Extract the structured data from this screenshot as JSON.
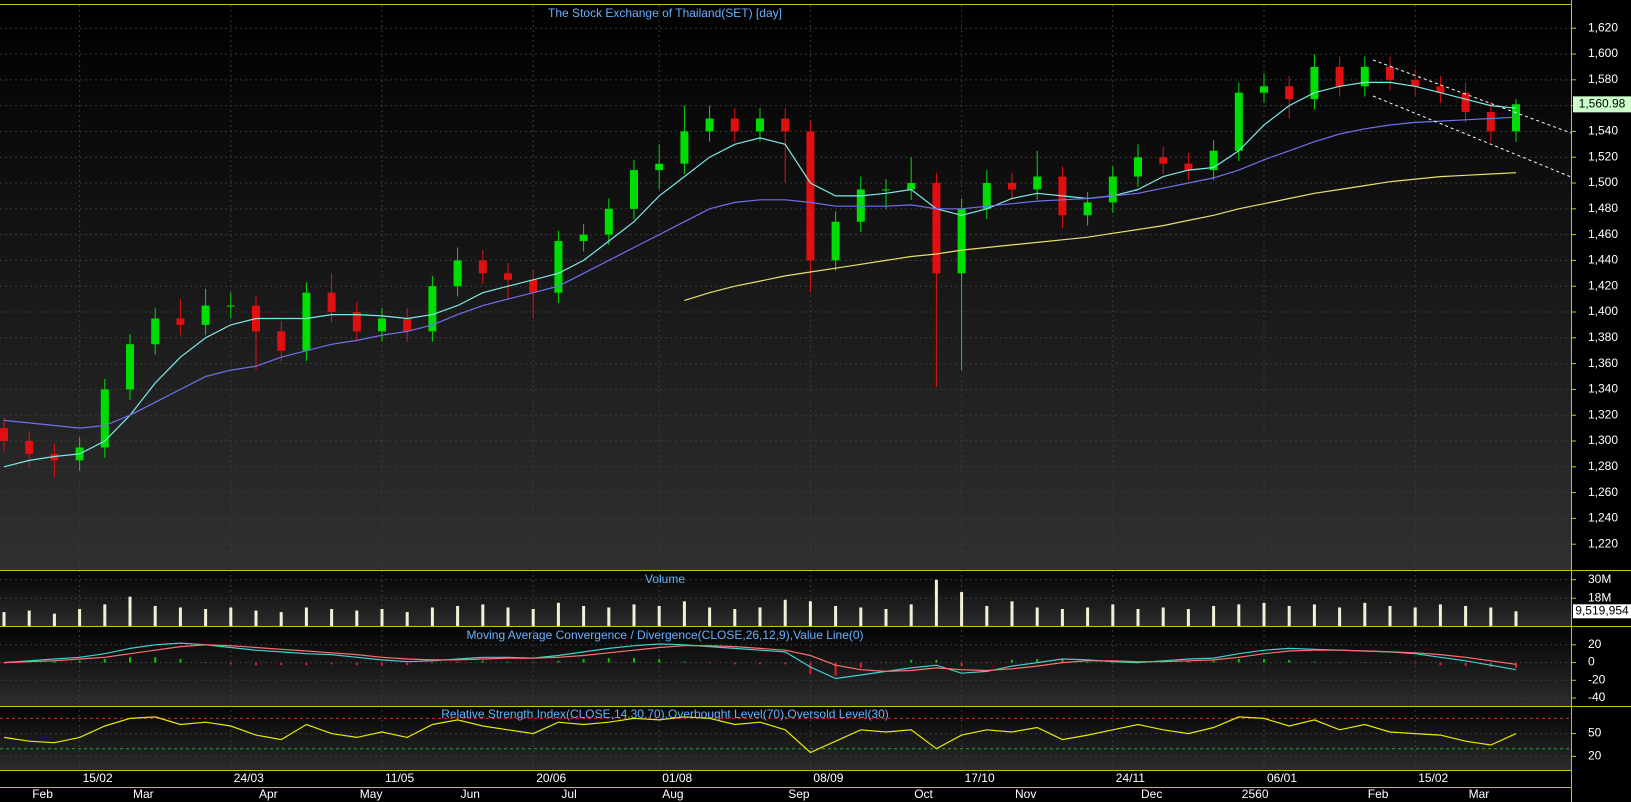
{
  "chart_data": [
    {
      "type": "candlestick",
      "title": "The Stock Exchange of Thailand(SET) [day]",
      "up_color": "#00dd00",
      "down_color": "#e01010",
      "open": [
        1310,
        1300,
        1290,
        1285,
        1295,
        1340,
        1375,
        1395,
        1390,
        1405,
        1405,
        1385,
        1370,
        1415,
        1400,
        1385,
        1395,
        1385,
        1420,
        1440,
        1430,
        1425,
        1415,
        1455,
        1460,
        1480,
        1510,
        1515,
        1540,
        1550,
        1540,
        1550,
        1540,
        1440,
        1470,
        1495,
        1495,
        1500,
        1430,
        1480,
        1500,
        1495,
        1505,
        1475,
        1485,
        1505,
        1520,
        1515,
        1510,
        1525,
        1570,
        1575,
        1565,
        1590,
        1575,
        1590,
        1580,
        1575,
        1570,
        1555,
        1540
      ],
      "high": [
        1318,
        1308,
        1298,
        1303,
        1348,
        1383,
        1403,
        1410,
        1418,
        1415,
        1413,
        1393,
        1423,
        1430,
        1408,
        1403,
        1403,
        1428,
        1450,
        1448,
        1438,
        1433,
        1463,
        1468,
        1488,
        1518,
        1530,
        1560,
        1560,
        1558,
        1558,
        1558,
        1548,
        1478,
        1505,
        1503,
        1520,
        1508,
        1488,
        1510,
        1508,
        1525,
        1513,
        1493,
        1513,
        1530,
        1528,
        1523,
        1533,
        1578,
        1585,
        1583,
        1600,
        1598,
        1598,
        1598,
        1588,
        1583,
        1578,
        1563,
        1565
      ],
      "low": [
        1292,
        1280,
        1272,
        1277,
        1287,
        1332,
        1367,
        1382,
        1382,
        1395,
        1355,
        1362,
        1362,
        1392,
        1377,
        1377,
        1377,
        1377,
        1412,
        1422,
        1410,
        1395,
        1407,
        1447,
        1452,
        1472,
        1495,
        1507,
        1532,
        1532,
        1532,
        1500,
        1415,
        1432,
        1462,
        1480,
        1487,
        1342,
        1355,
        1472,
        1487,
        1487,
        1465,
        1467,
        1477,
        1497,
        1507,
        1502,
        1502,
        1517,
        1562,
        1550,
        1557,
        1567,
        1567,
        1572,
        1567,
        1562,
        1547,
        1532,
        1532
      ],
      "close": [
        1300,
        1290,
        1285,
        1295,
        1340,
        1375,
        1395,
        1390,
        1405,
        1405,
        1385,
        1370,
        1415,
        1400,
        1385,
        1395,
        1385,
        1420,
        1440,
        1430,
        1425,
        1415,
        1455,
        1460,
        1480,
        1510,
        1515,
        1540,
        1550,
        1540,
        1550,
        1540,
        1440,
        1470,
        1495,
        1495,
        1500,
        1430,
        1480,
        1500,
        1495,
        1505,
        1475,
        1485,
        1505,
        1520,
        1515,
        1510,
        1525,
        1570,
        1575,
        1565,
        1590,
        1575,
        1590,
        1580,
        1575,
        1570,
        1555,
        1540,
        1561
      ],
      "overlays": [
        {
          "color": "#7fe8e8",
          "values": [
            1280,
            1285,
            1288,
            1290,
            1300,
            1320,
            1345,
            1365,
            1380,
            1390,
            1395,
            1395,
            1395,
            1398,
            1398,
            1397,
            1395,
            1398,
            1405,
            1415,
            1420,
            1425,
            1430,
            1440,
            1455,
            1470,
            1490,
            1505,
            1520,
            1530,
            1535,
            1530,
            1500,
            1490,
            1490,
            1492,
            1495,
            1480,
            1475,
            1480,
            1488,
            1492,
            1490,
            1488,
            1490,
            1495,
            1505,
            1510,
            1512,
            1525,
            1545,
            1560,
            1570,
            1575,
            1578,
            1578,
            1575,
            1570,
            1565,
            1560,
            1558
          ]
        },
        {
          "color": "#7070ee",
          "values": [
            1316,
            1314,
            1312,
            1310,
            1312,
            1320,
            1330,
            1340,
            1350,
            1355,
            1358,
            1365,
            1370,
            1375,
            1378,
            1382,
            1385,
            1390,
            1398,
            1405,
            1410,
            1415,
            1420,
            1430,
            1440,
            1450,
            1460,
            1470,
            1480,
            1485,
            1487,
            1487,
            1485,
            1482,
            1482,
            1482,
            1483,
            1480,
            1480,
            1482,
            1484,
            1486,
            1487,
            1488,
            1490,
            1492,
            1496,
            1500,
            1504,
            1510,
            1518,
            1525,
            1532,
            1538,
            1542,
            1545,
            1547,
            1548,
            1549,
            1550,
            1551
          ]
        },
        {
          "color": "#e8e070",
          "values": [
            null,
            null,
            null,
            null,
            null,
            null,
            null,
            null,
            null,
            null,
            null,
            null,
            null,
            null,
            null,
            null,
            null,
            null,
            null,
            null,
            null,
            null,
            null,
            null,
            null,
            null,
            null,
            1409,
            1415,
            1420,
            1424,
            1428,
            1431,
            1434,
            1437,
            1440,
            1443,
            1445,
            1448,
            1450,
            1452,
            1454,
            1456,
            1458,
            1461,
            1464,
            1467,
            1471,
            1475,
            1480,
            1484,
            1488,
            1492,
            1495,
            1498,
            1501,
            1503,
            1505,
            1506,
            1507,
            1508
          ]
        }
      ],
      "last_price": {
        "value": 1560.98,
        "label": "1,560.98"
      },
      "ylim": [
        1200,
        1638
      ],
      "yticks": [
        {
          "value": 1220,
          "label": "1,220"
        },
        {
          "value": 1240,
          "label": "1,240"
        },
        {
          "value": 1260,
          "label": "1,260"
        },
        {
          "value": 1280,
          "label": "1,280"
        },
        {
          "value": 1300,
          "label": "1,300"
        },
        {
          "value": 1320,
          "label": "1,320"
        },
        {
          "value": 1340,
          "label": "1,340"
        },
        {
          "value": 1360,
          "label": "1,360"
        },
        {
          "value": 1380,
          "label": "1,380"
        },
        {
          "value": 1400,
          "label": "1,400"
        },
        {
          "value": 1420,
          "label": "1,420"
        },
        {
          "value": 1440,
          "label": "1,440"
        },
        {
          "value": 1460,
          "label": "1,460"
        },
        {
          "value": 1480,
          "label": "1,480"
        },
        {
          "value": 1500,
          "label": "1,500"
        },
        {
          "value": 1520,
          "label": "1,520"
        },
        {
          "value": 1540,
          "label": "1,540"
        },
        {
          "value": 1560,
          "label": "1,560"
        },
        {
          "value": 1580,
          "label": "1,580"
        },
        {
          "value": 1600,
          "label": "1,600"
        },
        {
          "value": 1620,
          "label": "1,620"
        }
      ],
      "grid": true
    },
    {
      "type": "bar",
      "title": "Volume",
      "color": "#f4f0d8",
      "values": [
        9000000,
        10000000,
        8000000,
        11000000,
        14000000,
        19000000,
        13000000,
        12000000,
        11000000,
        12000000,
        10000000,
        9000000,
        12000000,
        11000000,
        10000000,
        11000000,
        9000000,
        12000000,
        13000000,
        14000000,
        12000000,
        11000000,
        15000000,
        13000000,
        12000000,
        14000000,
        13000000,
        16000000,
        12000000,
        11000000,
        12000000,
        17000000,
        16000000,
        13000000,
        12000000,
        11000000,
        14000000,
        30000000,
        22000000,
        13000000,
        16000000,
        12000000,
        11000000,
        12000000,
        14000000,
        11000000,
        12000000,
        11000000,
        13000000,
        14000000,
        15000000,
        13000000,
        14000000,
        12000000,
        15000000,
        13000000,
        12000000,
        14000000,
        13000000,
        12000000,
        9519954
      ],
      "last_value": {
        "value": 9519954,
        "label": "9,519,954"
      },
      "ylim": [
        0,
        35000000
      ],
      "yticks": [
        {
          "value": 30000000,
          "label": "30M"
        },
        {
          "value": 18000000,
          "label": "18M"
        }
      ],
      "grid": true
    },
    {
      "type": "line",
      "title": "Moving Average Convergence / Divergence(CLOSE,26,12,9),Value Line(0)",
      "series": [
        {
          "color": "#40d0d0",
          "values": [
            0,
            2,
            4,
            6,
            10,
            16,
            20,
            22,
            20,
            17,
            14,
            12,
            10,
            9,
            6,
            3,
            1,
            2,
            4,
            6,
            6,
            5,
            8,
            12,
            16,
            19,
            21,
            20,
            18,
            16,
            14,
            12,
            -5,
            -18,
            -14,
            -10,
            -6,
            -3,
            -12,
            -10,
            -4,
            0,
            4,
            3,
            1,
            0,
            2,
            4,
            5,
            10,
            14,
            16,
            15,
            14,
            13,
            12,
            10,
            6,
            2,
            -3,
            -8
          ]
        },
        {
          "color": "#ff7070",
          "values": [
            0,
            1,
            2,
            4,
            6,
            10,
            14,
            18,
            20,
            19,
            17,
            15,
            13,
            11,
            9,
            6,
            4,
            3,
            3,
            4,
            5,
            5,
            6,
            8,
            11,
            14,
            17,
            19,
            19,
            18,
            16,
            14,
            8,
            -3,
            -8,
            -10,
            -9,
            -6,
            -8,
            -9,
            -7,
            -4,
            0,
            2,
            2,
            1,
            1,
            2,
            3,
            6,
            10,
            13,
            14,
            14,
            13,
            12,
            11,
            9,
            6,
            2,
            -2
          ]
        }
      ],
      "histogram": {
        "up_color": "#00cc00",
        "down_color": "#dd2020",
        "values": [
          0,
          1,
          2,
          2,
          4,
          6,
          6,
          4,
          0,
          -2,
          -3,
          -3,
          -3,
          -2,
          -3,
          -3,
          -3,
          -1,
          1,
          2,
          1,
          0,
          2,
          4,
          5,
          5,
          4,
          1,
          -1,
          -2,
          -2,
          -2,
          -13,
          -15,
          -6,
          0,
          3,
          3,
          -4,
          -1,
          3,
          4,
          4,
          1,
          -1,
          -1,
          1,
          2,
          2,
          4,
          4,
          3,
          1,
          0,
          0,
          0,
          -1,
          -3,
          -4,
          -5,
          -6
        ]
      },
      "ylim": [
        -49,
        39
      ],
      "yticks": [
        20,
        0,
        -20,
        -40
      ],
      "grid": true
    },
    {
      "type": "line",
      "title": "Relative Strength Index(CLOSE,14,30,70),Overbought Level(70),Oversold Level(30)",
      "series": [
        {
          "color": "#e8e800",
          "values": [
            45,
            40,
            38,
            45,
            60,
            70,
            72,
            62,
            65,
            60,
            48,
            42,
            62,
            50,
            45,
            52,
            45,
            62,
            68,
            60,
            55,
            50,
            65,
            62,
            65,
            70,
            68,
            72,
            70,
            62,
            65,
            55,
            25,
            40,
            55,
            52,
            55,
            30,
            48,
            55,
            52,
            58,
            42,
            48,
            55,
            62,
            55,
            50,
            58,
            72,
            70,
            60,
            68,
            55,
            62,
            52,
            50,
            48,
            40,
            35,
            50
          ]
        }
      ],
      "levels": [
        {
          "value": 70,
          "color": "#c03030"
        },
        {
          "value": 30,
          "color": "#30a030"
        }
      ],
      "ylim": [
        2,
        85
      ],
      "yticks": [
        50,
        20
      ],
      "grid": true,
      "categories": [
        null,
        null,
        null,
        "15/02",
        null,
        null,
        null,
        null,
        null,
        "24/03",
        null,
        null,
        null,
        null,
        null,
        "11/05",
        null,
        null,
        null,
        null,
        null,
        "20/06",
        null,
        null,
        null,
        null,
        "01/08",
        null,
        null,
        null,
        null,
        null,
        "08/09",
        null,
        null,
        null,
        null,
        null,
        "17/10",
        null,
        null,
        null,
        null,
        null,
        "24/11",
        null,
        null,
        null,
        null,
        null,
        "06/01",
        null,
        null,
        null,
        null,
        null,
        "15/02",
        null,
        null,
        null,
        null
      ],
      "months": [
        null,
        "Feb",
        null,
        null,
        null,
        "Mar",
        null,
        null,
        null,
        null,
        "Apr",
        null,
        null,
        null,
        "May",
        null,
        null,
        null,
        "Jun",
        null,
        null,
        null,
        "Jul",
        null,
        null,
        null,
        "Aug",
        null,
        null,
        null,
        null,
        "Sep",
        null,
        null,
        null,
        null,
        "Oct",
        null,
        null,
        null,
        "Nov",
        null,
        null,
        null,
        null,
        "Dec",
        null,
        null,
        null,
        "2560",
        null,
        null,
        null,
        null,
        "Feb",
        null,
        null,
        null,
        "Mar",
        null,
        null
      ]
    }
  ]
}
